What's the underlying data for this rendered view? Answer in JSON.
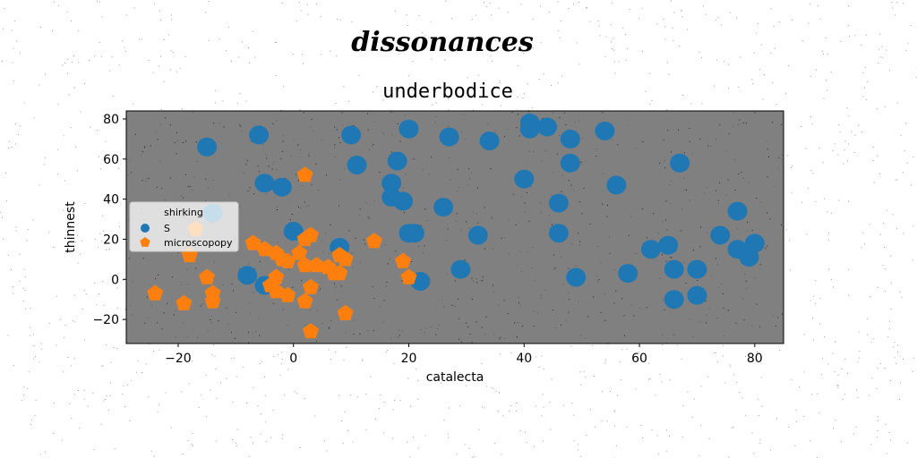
{
  "suptitle": "dissonances",
  "chart_data": {
    "type": "scatter",
    "title": "underbodice",
    "xlabel": "catalecta",
    "ylabel": "thinnest",
    "xlim": [
      -29,
      85
    ],
    "ylim": [
      -32,
      84
    ],
    "xticks": [
      -20,
      0,
      20,
      40,
      60,
      80
    ],
    "yticks": [
      -20,
      0,
      20,
      40,
      60,
      80
    ],
    "xtick_labels": [
      "−20",
      "0",
      "20",
      "40",
      "60",
      "80"
    ],
    "ytick_labels": [
      "−20",
      "0",
      "20",
      "40",
      "60",
      "80"
    ],
    "grid": false,
    "background": "#808080",
    "legend": {
      "title": "shirking",
      "placement": "center-left"
    },
    "series": [
      {
        "name": "S",
        "color": "#1f77b4",
        "marker": "circle",
        "points": [
          [
            -15,
            66
          ],
          [
            -6,
            72
          ],
          [
            10,
            72
          ],
          [
            20,
            75
          ],
          [
            27,
            71
          ],
          [
            34,
            69
          ],
          [
            41,
            78
          ],
          [
            41,
            75
          ],
          [
            44,
            76
          ],
          [
            48,
            70
          ],
          [
            54,
            74
          ],
          [
            11,
            57
          ],
          [
            18,
            59
          ],
          [
            48,
            58
          ],
          [
            67,
            58
          ],
          [
            -5,
            48
          ],
          [
            -2,
            46
          ],
          [
            17,
            48
          ],
          [
            17,
            41
          ],
          [
            19,
            39
          ],
          [
            40,
            50
          ],
          [
            46,
            38
          ],
          [
            56,
            47
          ],
          [
            26,
            36
          ],
          [
            -14,
            33
          ],
          [
            77,
            34
          ],
          [
            0,
            24
          ],
          [
            8,
            16
          ],
          [
            20,
            23
          ],
          [
            21,
            23
          ],
          [
            32,
            22
          ],
          [
            46,
            23
          ],
          [
            62,
            15
          ],
          [
            65,
            17
          ],
          [
            74,
            22
          ],
          [
            77,
            15
          ],
          [
            79,
            11
          ],
          [
            80,
            18
          ],
          [
            -8,
            2
          ],
          [
            -5,
            -3
          ],
          [
            22,
            -1
          ],
          [
            29,
            5
          ],
          [
            49,
            1
          ],
          [
            58,
            3
          ],
          [
            66,
            5
          ],
          [
            70,
            5
          ],
          [
            66,
            -10
          ],
          [
            70,
            -8
          ]
        ]
      },
      {
        "name": "microscopopy",
        "color": "#ff7f0e",
        "marker": "pentagon",
        "points": [
          [
            2,
            52
          ],
          [
            -17,
            25
          ],
          [
            -7,
            18
          ],
          [
            -5,
            15
          ],
          [
            -3,
            13
          ],
          [
            -2,
            10
          ],
          [
            -1,
            9
          ],
          [
            1,
            13
          ],
          [
            2,
            20
          ],
          [
            3,
            22
          ],
          [
            8,
            12
          ],
          [
            9,
            10
          ],
          [
            14,
            19
          ],
          [
            19,
            9
          ],
          [
            -18,
            12
          ],
          [
            2,
            7
          ],
          [
            4,
            7
          ],
          [
            6,
            6
          ],
          [
            7,
            3
          ],
          [
            8,
            3
          ],
          [
            20,
            1
          ],
          [
            -15,
            1
          ],
          [
            -3,
            1
          ],
          [
            -4,
            -3
          ],
          [
            -3,
            -6
          ],
          [
            -1,
            -8
          ],
          [
            3,
            -4
          ],
          [
            -14,
            -7
          ],
          [
            -14,
            -11
          ],
          [
            -24,
            -7
          ],
          [
            -19,
            -12
          ],
          [
            2,
            -11
          ],
          [
            9,
            -17
          ],
          [
            3,
            -26
          ]
        ]
      }
    ]
  }
}
